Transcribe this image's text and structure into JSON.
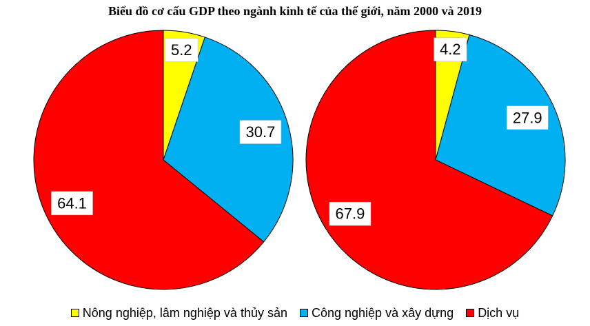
{
  "chart_data": {
    "type": "pie",
    "title": "Biểu đồ cơ cấu GDP theo ngành kinh tế của thế giới, năm 2000 và 2019",
    "categories": [
      "Nông nghiệp, lâm nghiệp và thủy sản",
      "Công nghiệp và xây dựng",
      "Dịch vụ"
    ],
    "colors": [
      "#ffff00",
      "#00b0f0",
      "#ff0000"
    ],
    "series": [
      {
        "values": [
          5.2,
          30.7,
          64.1
        ]
      },
      {
        "values": [
          4.2,
          27.9,
          67.9
        ]
      }
    ],
    "legend_position": "bottom"
  }
}
